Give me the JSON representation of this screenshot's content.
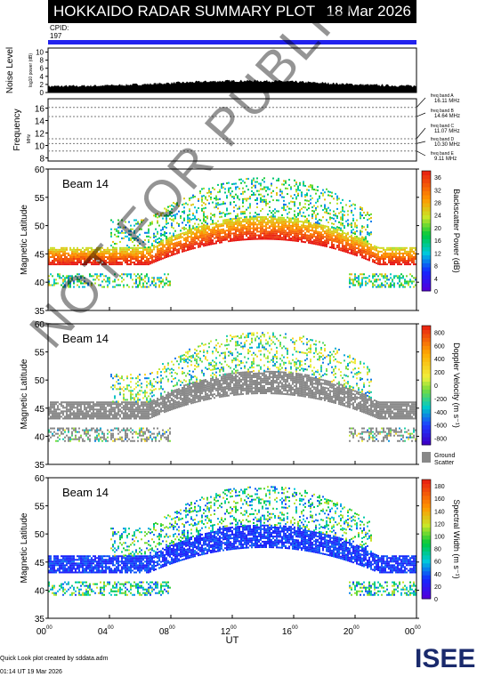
{
  "header": {
    "title": "HOKKAIDO RADAR SUMMARY PLOT",
    "date": "18 Mar 2026"
  },
  "cpid": {
    "label": "CPID:",
    "value": "197"
  },
  "watermark": "NOT FOR PUBLICATION",
  "footer": {
    "line1": "Quick Look plot created by sddata.adm",
    "line2": "01:14 UT 19 Mar 2026"
  },
  "logo": {
    "text": "ISEE",
    "colors": [
      "#1a2a6c",
      "#2ea84a"
    ]
  },
  "chart_data": [
    {
      "type": "area",
      "panel": "noise",
      "ylabel": "Noise Level",
      "ylabel_unit": "log10 power (dB)",
      "yticks": [
        "0",
        "2",
        "4",
        "6",
        "8",
        "10"
      ],
      "ylim": [
        0,
        11
      ],
      "baseline_level": 1.2,
      "peak_level": 2.6
    },
    {
      "type": "line",
      "panel": "frequency",
      "ylabel": "Frequency",
      "ylabel_unit": "MHz",
      "ylim": [
        7.5,
        17.5
      ],
      "yticks": [
        "8",
        "10",
        "12",
        "14",
        "16"
      ],
      "bands": [
        {
          "name": "freq band A",
          "value": "16.11 MHz",
          "mhz": 16.11
        },
        {
          "name": "freq band B",
          "value": "14.64 MHz",
          "mhz": 14.64
        },
        {
          "name": "freq band C",
          "value": "11.07 MHz",
          "mhz": 11.07
        },
        {
          "name": "freq band D",
          "value": "10.30 MHz",
          "mhz": 10.3
        },
        {
          "name": "freq band E",
          "value": "9.11 MHz",
          "mhz": 9.11
        }
      ]
    },
    {
      "type": "heatmap",
      "panel": "power",
      "label": "Beam 14",
      "ylabel": "Magnetic Latitude",
      "ylim": [
        35,
        60
      ],
      "yticks": [
        "35",
        "40",
        "45",
        "50",
        "55",
        "60"
      ],
      "colorbar": {
        "label": "Backscatter Power (dB)",
        "ticks": [
          "0",
          "4",
          "8",
          "12",
          "16",
          "20",
          "24",
          "28",
          "32",
          "36"
        ],
        "range": [
          0,
          38
        ]
      }
    },
    {
      "type": "heatmap",
      "panel": "velocity",
      "label": "Beam 14",
      "ylabel": "Magnetic Latitude",
      "ylim": [
        35,
        60
      ],
      "yticks": [
        "35",
        "40",
        "45",
        "50",
        "55",
        "60"
      ],
      "colorbar": {
        "label": "Doppler Velocity (m s⁻¹)",
        "ticks": [
          "-800",
          "-600",
          "-400",
          "-200",
          "0",
          "200",
          "400",
          "600",
          "800"
        ],
        "range": [
          -900,
          900
        ]
      },
      "ground_scatter_label": [
        "Ground",
        "Scatter"
      ]
    },
    {
      "type": "heatmap",
      "panel": "width",
      "label": "Beam 14",
      "ylabel": "Magnetic Latitude",
      "ylim": [
        35,
        60
      ],
      "yticks": [
        "35",
        "40",
        "45",
        "50",
        "55",
        "60"
      ],
      "colorbar": {
        "label": "Spectral Width (m s⁻¹)",
        "ticks": [
          "0",
          "20",
          "40",
          "60",
          "80",
          "100",
          "120",
          "140",
          "160",
          "180"
        ],
        "range": [
          0,
          190
        ]
      }
    }
  ],
  "x_axis": {
    "label": "UT",
    "ticks": [
      {
        "h": "00",
        "m": "00",
        "ut": 0
      },
      {
        "h": "04",
        "m": "00",
        "ut": 4
      },
      {
        "h": "08",
        "m": "00",
        "ut": 8
      },
      {
        "h": "12",
        "m": "00",
        "ut": 12
      },
      {
        "h": "16",
        "m": "00",
        "ut": 16
      },
      {
        "h": "20",
        "m": "00",
        "ut": 20
      },
      {
        "h": "00",
        "m": "00",
        "ut": 24
      }
    ],
    "range": [
      0,
      24
    ]
  }
}
